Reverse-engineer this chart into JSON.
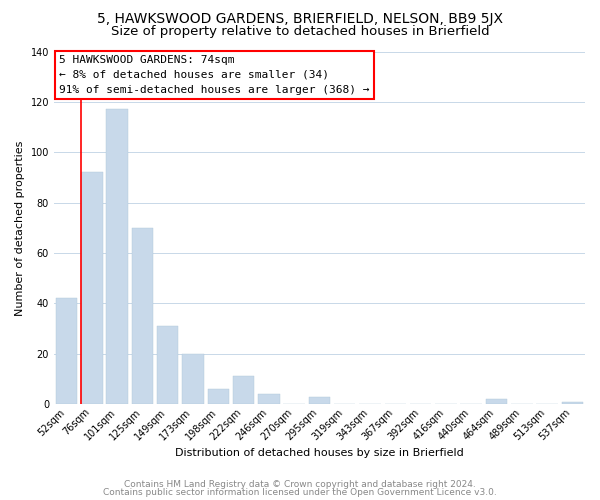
{
  "title": "5, HAWKSWOOD GARDENS, BRIERFIELD, NELSON, BB9 5JX",
  "subtitle": "Size of property relative to detached houses in Brierfield",
  "xlabel": "Distribution of detached houses by size in Brierfield",
  "ylabel": "Number of detached properties",
  "bar_labels": [
    "52sqm",
    "76sqm",
    "101sqm",
    "125sqm",
    "149sqm",
    "173sqm",
    "198sqm",
    "222sqm",
    "246sqm",
    "270sqm",
    "295sqm",
    "319sqm",
    "343sqm",
    "367sqm",
    "392sqm",
    "416sqm",
    "440sqm",
    "464sqm",
    "489sqm",
    "513sqm",
    "537sqm"
  ],
  "bar_heights": [
    42,
    92,
    117,
    70,
    31,
    20,
    6,
    11,
    4,
    0,
    3,
    0,
    0,
    0,
    0,
    0,
    0,
    2,
    0,
    0,
    1
  ],
  "bar_color": "#c8d9ea",
  "annotation_box_text": "5 HAWKSWOOD GARDENS: 74sqm\n← 8% of detached houses are smaller (34)\n91% of semi-detached houses are larger (368) →",
  "ylim": [
    0,
    140
  ],
  "yticks": [
    0,
    20,
    40,
    60,
    80,
    100,
    120,
    140
  ],
  "footer_line1": "Contains HM Land Registry data © Crown copyright and database right 2024.",
  "footer_line2": "Contains public sector information licensed under the Open Government Licence v3.0.",
  "bg_color": "#ffffff",
  "grid_color": "#c8d8e8",
  "title_fontsize": 10,
  "subtitle_fontsize": 9.5,
  "label_fontsize": 8,
  "tick_fontsize": 7,
  "annotation_fontsize": 8,
  "footer_fontsize": 6.5
}
